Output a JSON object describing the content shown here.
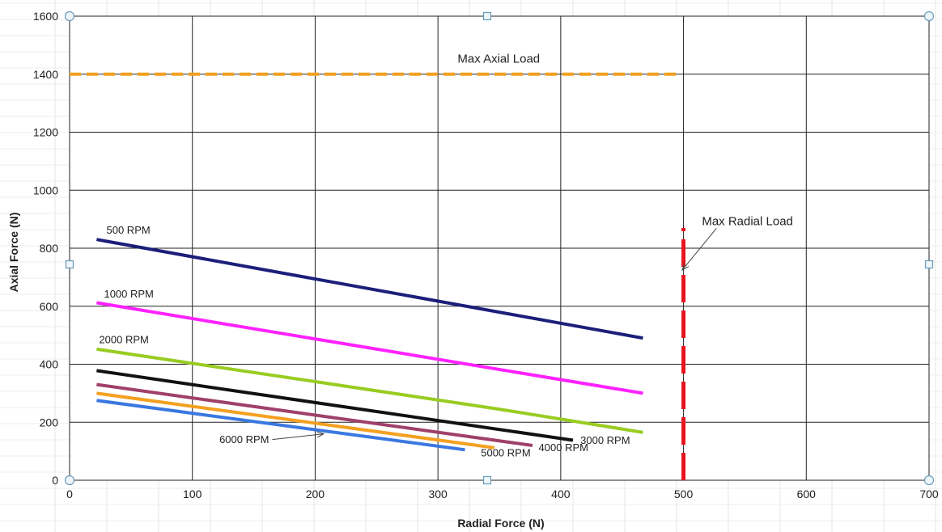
{
  "chart_data": {
    "type": "line",
    "xlabel": "Radial Force (N)",
    "ylabel": "Axial Force (N)",
    "xlim": [
      0,
      700
    ],
    "ylim": [
      0,
      1600
    ],
    "x_ticks": [
      0,
      100,
      200,
      300,
      400,
      500,
      600,
      700
    ],
    "y_ticks": [
      0,
      200,
      400,
      600,
      800,
      1000,
      1200,
      1400,
      1600
    ],
    "grid": true,
    "series": [
      {
        "name": "500 RPM",
        "color": "#1b1f7a",
        "points": [
          [
            22,
            830
          ],
          [
            467,
            490
          ]
        ]
      },
      {
        "name": "1000 RPM",
        "color": "#ff22ff",
        "points": [
          [
            22,
            612
          ],
          [
            467,
            300
          ]
        ]
      },
      {
        "name": "2000 RPM",
        "color": "#99cc22",
        "points": [
          [
            22,
            452
          ],
          [
            200,
            340
          ],
          [
            350,
            245
          ],
          [
            467,
            165
          ]
        ]
      },
      {
        "name": "3000 RPM",
        "color": "#111111",
        "points": [
          [
            22,
            378
          ],
          [
            410,
            138
          ]
        ]
      },
      {
        "name": "4000 RPM",
        "color": "#a0406a",
        "points": [
          [
            22,
            330
          ],
          [
            377,
            120
          ]
        ]
      },
      {
        "name": "5000 RPM",
        "color": "#f4a020",
        "points": [
          [
            22,
            300
          ],
          [
            346,
            112
          ]
        ]
      },
      {
        "name": "6000 RPM",
        "color": "#3a78e0",
        "points": [
          [
            22,
            275
          ],
          [
            322,
            105
          ]
        ]
      }
    ],
    "reference_lines": [
      {
        "name": "Max Axial Load",
        "orientation": "horizontal",
        "value": 1400,
        "from": 0,
        "to": 495,
        "color": "#f4a020"
      },
      {
        "name": "Max Radial Load",
        "orientation": "vertical",
        "value": 500,
        "from": 0,
        "to": 870,
        "color": "#e8141e"
      }
    ],
    "annotations": [
      {
        "text": "500 RPM",
        "x": 30,
        "y": 850
      },
      {
        "text": "1000 RPM",
        "x": 28,
        "y": 630
      },
      {
        "text": "2000 RPM",
        "x": 24,
        "y": 472
      },
      {
        "text": "3000 RPM",
        "x": 416,
        "y": 126
      },
      {
        "text": "4000 RPM",
        "x": 382,
        "y": 100
      },
      {
        "text": "5000 RPM",
        "x": 335,
        "y": 82
      },
      {
        "text": "6000 RPM",
        "x": 122,
        "y": 128,
        "arrow_to": [
          207,
          160
        ]
      },
      {
        "text": "Max Axial Load",
        "x": 316,
        "y": 1440
      },
      {
        "text": "Max Radial Load",
        "x": 515,
        "y": 880,
        "arrow_to": [
          499,
          725
        ]
      }
    ]
  }
}
